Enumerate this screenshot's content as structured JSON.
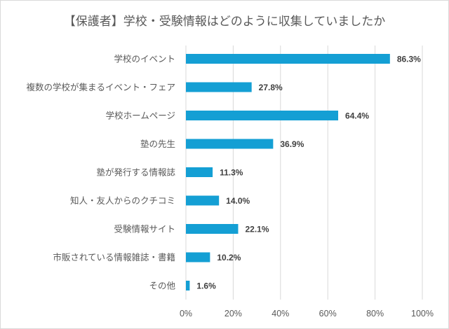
{
  "chart_data": {
    "type": "bar",
    "orientation": "horizontal",
    "title": "【保護者】学校・受験情報はどのように収集していましたか",
    "categories": [
      "学校のイベント",
      "複数の学校が集まるイベント・フェア",
      "学校ホームページ",
      "塾の先生",
      "塾が発行する情報誌",
      "知人・友人からのクチコミ",
      "受験情報サイト",
      "市販されている情報雑誌・書籍",
      "その他"
    ],
    "values": [
      86.3,
      27.8,
      64.4,
      36.9,
      11.3,
      14.0,
      22.1,
      10.2,
      1.6
    ],
    "value_labels": [
      "86.3%",
      "27.8%",
      "64.4%",
      "36.9%",
      "11.3%",
      "14.0%",
      "22.1%",
      "10.2%",
      "1.6%"
    ],
    "xlim": [
      0,
      100
    ],
    "xticks": [
      "0%",
      "20%",
      "40%",
      "60%",
      "80%",
      "100%"
    ],
    "xlabel": "",
    "ylabel": "",
    "grid": true,
    "bar_color": "#149fd4"
  }
}
